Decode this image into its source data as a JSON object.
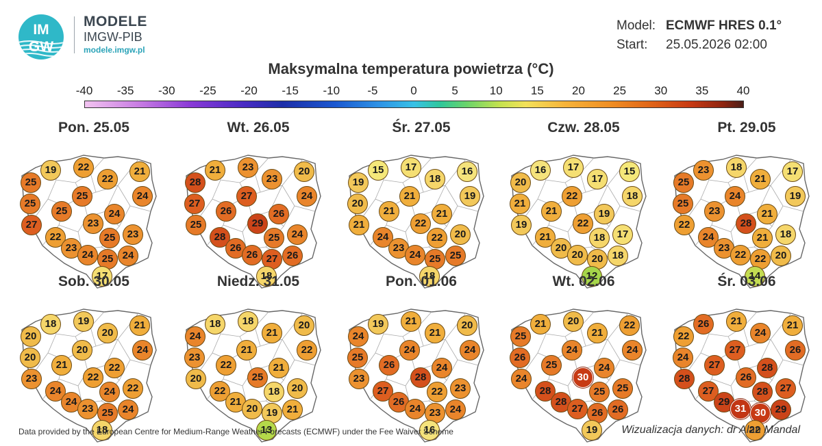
{
  "header": {
    "brand_title": "MODELE",
    "brand_sub": "IMGW-PIB",
    "brand_url": "modele.imgw.pl",
    "logo_text_top": "IM",
    "logo_text_bottom": "GW",
    "model_label": "Model:",
    "model_value": "ECMWF HRES 0.1°",
    "start_label": "Start:",
    "start_value": "25.05.2026 02:00"
  },
  "title": "Maksymalna temperatura powietrza (°C)",
  "scale": {
    "ticks": [
      "-40",
      "-35",
      "-30",
      "-25",
      "-20",
      "-15",
      "-10",
      "-5",
      "0",
      "5",
      "10",
      "15",
      "20",
      "25",
      "30",
      "35",
      "40"
    ],
    "min": -40,
    "max": 40
  },
  "colors": {
    "t12": "#a6d64a",
    "t13": "#b5d94a",
    "t14": "#c4dd52",
    "t15": "#f5e87a",
    "t16": "#f5e37c",
    "t17": "#f5df73",
    "t18": "#f5d66a",
    "t19": "#f2c85a",
    "t20": "#f0bb4a",
    "t21": "#f0ae3c",
    "t22": "#ee9f33",
    "t23": "#ec9230",
    "t24": "#e9852b",
    "t25": "#e67a28",
    "t26": "#e26c24",
    "t27": "#dd5e20",
    "t28": "#d4501c",
    "t29": "#cb4419",
    "t30": "#c73a14",
    "t31": "#c23514"
  },
  "icons": {
    "logo": "imgw-logo-icon",
    "map": "poland-outline-map"
  },
  "panels": [
    {
      "day": "Pon. 25.05",
      "values": [
        25,
        19,
        22,
        22,
        21,
        24,
        25,
        25,
        25,
        24,
        27,
        23,
        22,
        25,
        23,
        23,
        24,
        25,
        24,
        17
      ]
    },
    {
      "day": "Wt. 26.05",
      "values": [
        28,
        21,
        23,
        23,
        20,
        24,
        27,
        26,
        27,
        26,
        25,
        29,
        28,
        25,
        24,
        26,
        26,
        27,
        26,
        18
      ]
    },
    {
      "day": "Śr. 27.05",
      "values": [
        19,
        15,
        17,
        18,
        16,
        19,
        20,
        21,
        21,
        21,
        21,
        22,
        24,
        22,
        20,
        23,
        24,
        25,
        25,
        18
      ]
    },
    {
      "day": "Czw. 28.05",
      "values": [
        20,
        16,
        17,
        17,
        15,
        18,
        21,
        21,
        22,
        19,
        19,
        22,
        21,
        18,
        17,
        20,
        20,
        20,
        18,
        12
      ]
    },
    {
      "day": "Pt. 29.05",
      "values": [
        25,
        23,
        18,
        21,
        17,
        19,
        25,
        23,
        24,
        21,
        22,
        28,
        24,
        21,
        18,
        23,
        22,
        22,
        20,
        14
      ]
    },
    {
      "day": "Sob. 30.05",
      "values": [
        20,
        18,
        19,
        20,
        21,
        24,
        20,
        21,
        20,
        22,
        23,
        22,
        24,
        24,
        22,
        24,
        23,
        25,
        24,
        18
      ]
    },
    {
      "day": "Niedz. 31.05",
      "values": [
        24,
        18,
        18,
        21,
        20,
        22,
        23,
        22,
        21,
        21,
        20,
        25,
        22,
        18,
        20,
        21,
        20,
        19,
        21,
        13
      ]
    },
    {
      "day": "Pon. 01.06",
      "values": [
        24,
        19,
        21,
        21,
        20,
        24,
        25,
        26,
        24,
        24,
        23,
        28,
        27,
        22,
        23,
        26,
        24,
        23,
        24,
        16
      ]
    },
    {
      "day": "Wt. 02.06",
      "values": [
        25,
        21,
        20,
        21,
        22,
        24,
        26,
        25,
        24,
        24,
        24,
        30,
        28,
        25,
        25,
        28,
        27,
        26,
        26,
        19
      ]
    },
    {
      "day": "Śr. 03.06",
      "values": [
        22,
        26,
        21,
        24,
        21,
        26,
        24,
        27,
        27,
        28,
        28,
        26,
        27,
        28,
        27,
        29,
        31,
        30,
        29,
        22
      ]
    }
  ],
  "footer": {
    "left": "Data provided by the European Centre for Medium-Range Weather Forecasts (ECMWF) under the Fee Waiver Scheme",
    "right": "Wizualizacja danych: dr Alan Mandal"
  }
}
